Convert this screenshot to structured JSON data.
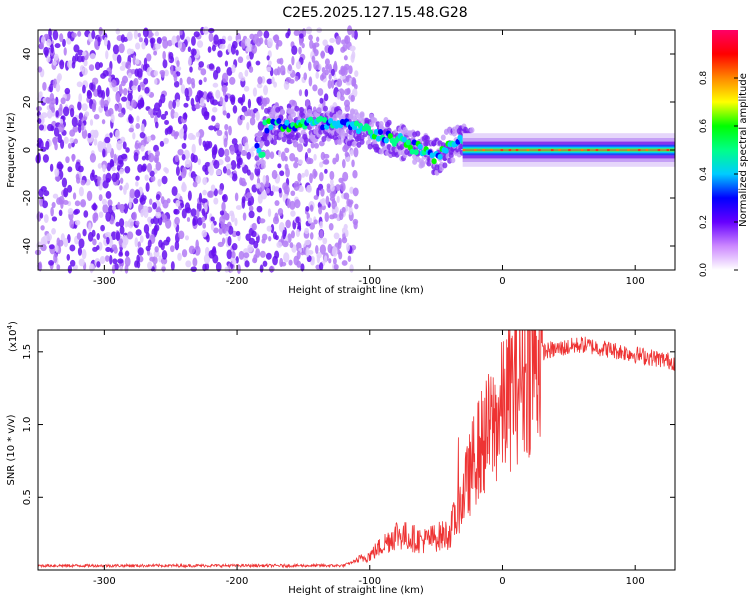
{
  "page_title": "C2E5.2025.127.15.48.G28",
  "chart_data": [
    {
      "type": "heatmap",
      "xlabel": "Height of straight line (km)",
      "ylabel": "Frequency (Hz)",
      "xlim": [
        -350,
        130
      ],
      "ylim": [
        -50,
        50
      ],
      "x_ticks": [
        -300,
        -200,
        -100,
        0,
        100
      ],
      "y_ticks": [
        -40,
        -20,
        0,
        20,
        40
      ],
      "colorbar": {
        "label": "Normalized spectral amplitude",
        "range": [
          0,
          1
        ],
        "ticks": [
          "0.0",
          "0.2",
          "0.4",
          "0.6",
          "0.8"
        ],
        "colors": [
          "#ffffff",
          "#cc88ff",
          "#6600ff",
          "#0000ff",
          "#00ccff",
          "#00ff88",
          "#00ff00",
          "#ffff00",
          "#ff8800",
          "#ff0000",
          "#ff0066"
        ]
      },
      "features": {
        "noise_region_x": [
          -350,
          -120
        ],
        "track_points": [
          {
            "x": -180,
            "y": 10
          },
          {
            "x": -140,
            "y": 11
          },
          {
            "x": -120,
            "y": 10
          },
          {
            "x": -100,
            "y": 8
          },
          {
            "x": -80,
            "y": 4
          },
          {
            "x": -60,
            "y": 0
          },
          {
            "x": -50,
            "y": -3
          },
          {
            "x": -40,
            "y": 2
          },
          {
            "x": -30,
            "y": 3
          },
          {
            "x": -20,
            "y": 1
          },
          {
            "x": 0,
            "y": 0
          },
          {
            "x": 50,
            "y": 0
          },
          {
            "x": 130,
            "y": 0
          }
        ]
      }
    },
    {
      "type": "line",
      "xlabel": "Height of straight line (km)",
      "ylabel": "SNR (10 * v/v)",
      "multiplier": "(x10",
      "multiplier_exp": "4",
      "xlim": [
        -350,
        130
      ],
      "ylim": [
        0,
        1.65
      ],
      "x_ticks": [
        -300,
        -200,
        -100,
        0,
        100
      ],
      "y_ticks": [
        "0.5",
        "1.0",
        "1.5"
      ],
      "series_color": "#ee3333",
      "envelope": [
        {
          "x": -350,
          "y": 0.03
        },
        {
          "x": -120,
          "y": 0.03
        },
        {
          "x": -100,
          "y": 0.1
        },
        {
          "x": -80,
          "y": 0.25
        },
        {
          "x": -60,
          "y": 0.2
        },
        {
          "x": -40,
          "y": 0.25
        },
        {
          "x": -30,
          "y": 0.5
        },
        {
          "x": -20,
          "y": 0.8
        },
        {
          "x": -10,
          "y": 0.95
        },
        {
          "x": 0,
          "y": 1.1
        },
        {
          "x": 10,
          "y": 1.3
        },
        {
          "x": 30,
          "y": 1.5
        },
        {
          "x": 60,
          "y": 1.55
        },
        {
          "x": 90,
          "y": 1.5
        },
        {
          "x": 130,
          "y": 1.43
        }
      ]
    }
  ]
}
